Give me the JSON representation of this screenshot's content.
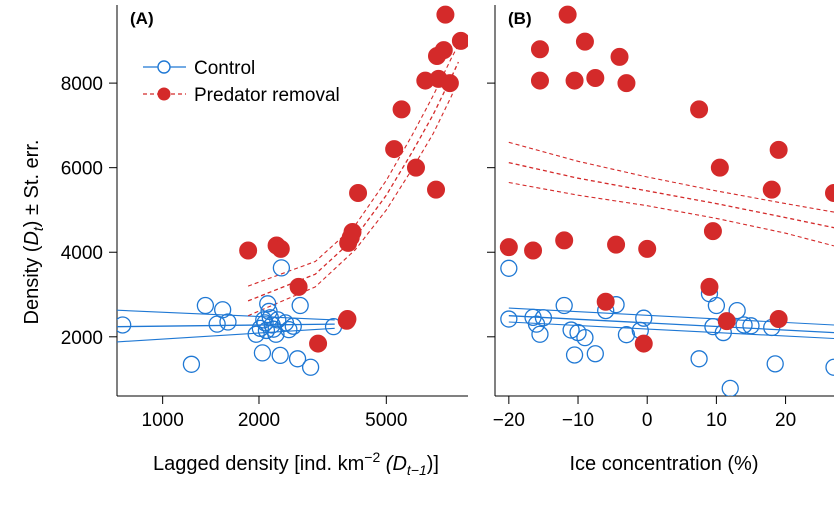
{
  "colors": {
    "control": "#1f78d4",
    "predator": "#d42a2a",
    "axis": "#000000"
  },
  "labels": {
    "panel_a": "(A)",
    "panel_b": "(B)",
    "ylabel_main": "Density (",
    "ylabel_var": "D",
    "ylabel_sub": "t",
    "ylabel_rest": ") ± St. err.",
    "xlabel_a_main": "Lagged density [ind. km",
    "xlabel_a_sup": "−2",
    "xlabel_a_var": " (D",
    "xlabel_a_sub": "t−1",
    "xlabel_a_end": ")]",
    "xlabel_b": "Ice concentration (%)"
  },
  "chart_data": [
    {
      "type": "scatter",
      "panel": "(A)",
      "xscale": "log",
      "xlim": [
        720,
        9000
      ],
      "ylim": [
        600,
        9800
      ],
      "xticks": [
        1000,
        2000,
        5000
      ],
      "xtick_labels": [
        "1000",
        "2000",
        "5000"
      ],
      "yticks": [
        2000,
        4000,
        6000,
        8000
      ],
      "ytick_labels": [
        "2000",
        "4000",
        "6000",
        "8000"
      ],
      "legend": {
        "position": "top-left"
      },
      "series": [
        {
          "name": "Control",
          "marker": "open-circle",
          "points": [
            [
              750,
              2280
            ],
            [
              1230,
              1350
            ],
            [
              1360,
              2740
            ],
            [
              1480,
              2300
            ],
            [
              1540,
              2640
            ],
            [
              1600,
              2350
            ],
            [
              1960,
              2060
            ],
            [
              2020,
              2200
            ],
            [
              2050,
              1620
            ],
            [
              2070,
              2400
            ],
            [
              2090,
              2330
            ],
            [
              2110,
              2150
            ],
            [
              2130,
              2780
            ],
            [
              2150,
              2600
            ],
            [
              2170,
              2450
            ],
            [
              2200,
              2280
            ],
            [
              2220,
              2180
            ],
            [
              2260,
              2060
            ],
            [
              2290,
              2400
            ],
            [
              2330,
              1560
            ],
            [
              2350,
              3630
            ],
            [
              2420,
              2330
            ],
            [
              2480,
              2170
            ],
            [
              2560,
              2250
            ],
            [
              2640,
              1480
            ],
            [
              2690,
              2740
            ],
            [
              2900,
              1280
            ],
            [
              3420,
              2240
            ]
          ],
          "fit": [
            [
              720,
              2240
            ],
            [
              3450,
              2300
            ]
          ],
          "fit_upper": [
            [
              720,
              2630
            ],
            [
              3450,
              2400
            ]
          ],
          "fit_lower": [
            [
              720,
              1880
            ],
            [
              3450,
              2200
            ]
          ]
        },
        {
          "name": "Predator removal",
          "marker": "filled-circle",
          "points": [
            [
              1850,
              4040
            ],
            [
              2270,
              4160
            ],
            [
              2340,
              4080
            ],
            [
              2660,
              3180
            ],
            [
              3060,
              1840
            ],
            [
              3760,
              2380
            ],
            [
              3780,
              2420
            ],
            [
              3800,
              4220
            ],
            [
              3870,
              4350
            ],
            [
              3920,
              4480
            ],
            [
              4080,
              5400
            ],
            [
              5290,
              6440
            ],
            [
              5580,
              7380
            ],
            [
              6190,
              6000
            ],
            [
              6620,
              8060
            ],
            [
              7150,
              5480
            ],
            [
              7200,
              8640
            ],
            [
              7280,
              8100
            ],
            [
              7560,
              8780
            ],
            [
              7650,
              9620
            ],
            [
              7900,
              8000
            ],
            [
              8550,
              9000
            ]
          ],
          "fit": [
            [
              1850,
              2850
            ],
            [
              3000,
              3480
            ],
            [
              4000,
              4350
            ],
            [
              5000,
              5350
            ],
            [
              6000,
              6350
            ],
            [
              7000,
              7250
            ],
            [
              8000,
              8150
            ],
            [
              8400,
              8500
            ]
          ],
          "fit_upper": [
            [
              1850,
              3200
            ],
            [
              3000,
              3780
            ],
            [
              4000,
              4640
            ],
            [
              5000,
              5700
            ],
            [
              6000,
              6750
            ],
            [
              7000,
              7700
            ],
            [
              8000,
              8600
            ],
            [
              8400,
              8900
            ]
          ],
          "fit_lower": [
            [
              1850,
              2500
            ],
            [
              3000,
              3180
            ],
            [
              4000,
              4060
            ],
            [
              5000,
              5000
            ],
            [
              6000,
              5950
            ],
            [
              7000,
              6800
            ],
            [
              8000,
              7700
            ],
            [
              8400,
              8100
            ]
          ]
        }
      ]
    },
    {
      "type": "scatter",
      "panel": "(B)",
      "xlim": [
        -22,
        27
      ],
      "ylim": [
        600,
        9800
      ],
      "xticks": [
        -20,
        -10,
        0,
        10,
        20
      ],
      "xtick_labels": [
        "−20",
        "−10",
        "0",
        "10",
        "20"
      ],
      "yticks": [
        2000,
        4000,
        6000,
        8000
      ],
      "series": [
        {
          "name": "Control",
          "marker": "open-circle",
          "points": [
            [
              -20,
              3620
            ],
            [
              -20,
              2420
            ],
            [
              -16.5,
              2460
            ],
            [
              -16,
              2300
            ],
            [
              -15.5,
              2060
            ],
            [
              -15,
              2450
            ],
            [
              -12,
              2740
            ],
            [
              -11,
              2160
            ],
            [
              -10.5,
              1570
            ],
            [
              -10,
              2100
            ],
            [
              -9,
              1980
            ],
            [
              -7.5,
              1600
            ],
            [
              -6,
              2620
            ],
            [
              -4.5,
              2760
            ],
            [
              -3,
              2050
            ],
            [
              -1,
              2150
            ],
            [
              -0.5,
              2440
            ],
            [
              7.5,
              1480
            ],
            [
              9,
              3020
            ],
            [
              9.5,
              2240
            ],
            [
              10,
              2740
            ],
            [
              11,
              2100
            ],
            [
              12,
              780
            ],
            [
              13,
              2620
            ],
            [
              14,
              2280
            ],
            [
              15,
              2260
            ],
            [
              18,
              2220
            ],
            [
              18.5,
              1360
            ],
            [
              27,
              1280
            ]
          ],
          "fit": [
            [
              -20,
              2500
            ],
            [
              27,
              2100
            ]
          ],
          "fit_upper": [
            [
              -20,
              2680
            ],
            [
              27,
              2280
            ]
          ],
          "fit_lower": [
            [
              -20,
              2350
            ],
            [
              27,
              1960
            ]
          ]
        },
        {
          "name": "Predator removal",
          "marker": "filled-circle",
          "points": [
            [
              -20,
              4120
            ],
            [
              -16.5,
              4040
            ],
            [
              -15.5,
              8800
            ],
            [
              -15.5,
              8060
            ],
            [
              -12,
              4280
            ],
            [
              -11.5,
              9620
            ],
            [
              -10.5,
              8060
            ],
            [
              -9,
              8980
            ],
            [
              -7.5,
              8120
            ],
            [
              -6,
              2830
            ],
            [
              -4.5,
              4180
            ],
            [
              -4,
              8620
            ],
            [
              -3,
              8000
            ],
            [
              -0.5,
              1840
            ],
            [
              0,
              4080
            ],
            [
              7.5,
              7380
            ],
            [
              9,
              3180
            ],
            [
              9.5,
              4500
            ],
            [
              10.5,
              6000
            ],
            [
              11.5,
              2370
            ],
            [
              18,
              5480
            ],
            [
              19,
              2420
            ],
            [
              19,
              6420
            ],
            [
              27,
              5400
            ]
          ],
          "fit": [
            [
              -20,
              6120
            ],
            [
              -10,
              5750
            ],
            [
              0,
              5450
            ],
            [
              10,
              5150
            ],
            [
              20,
              4820
            ],
            [
              27,
              4580
            ]
          ],
          "fit_upper": [
            [
              -20,
              6600
            ],
            [
              -10,
              6150
            ],
            [
              0,
              5780
            ],
            [
              10,
              5450
            ],
            [
              20,
              5150
            ],
            [
              27,
              4950
            ]
          ],
          "fit_lower": [
            [
              -20,
              5650
            ],
            [
              -10,
              5350
            ],
            [
              0,
              5100
            ],
            [
              10,
              4800
            ],
            [
              20,
              4450
            ],
            [
              27,
              4150
            ]
          ]
        }
      ]
    }
  ]
}
